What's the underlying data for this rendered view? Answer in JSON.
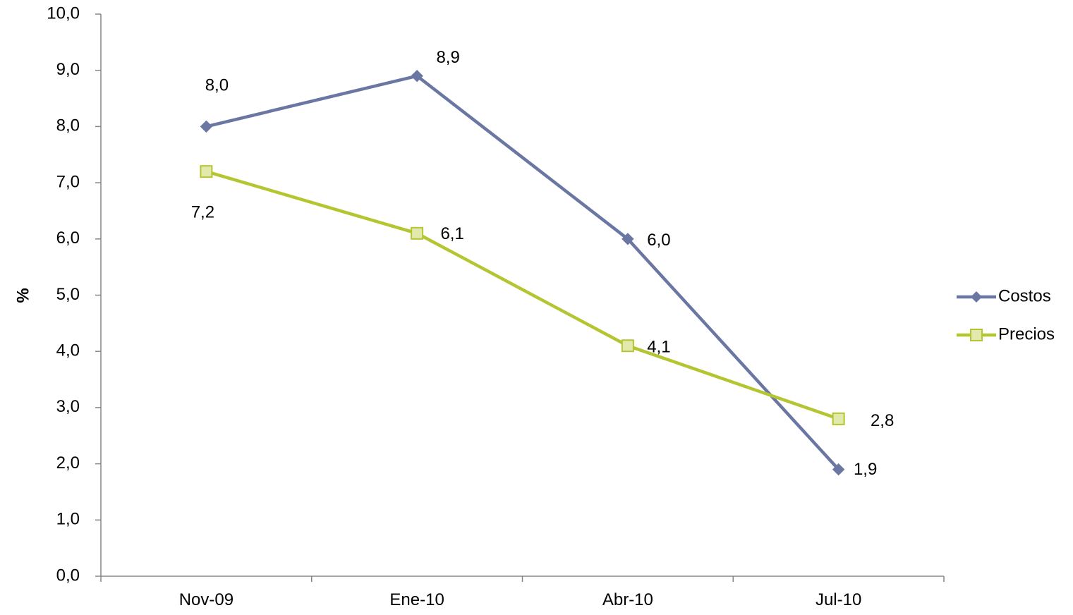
{
  "chart_data": {
    "type": "line",
    "categories": [
      "Nov-09",
      "Ene-10",
      "Abr-10",
      "Jul-10"
    ],
    "series": [
      {
        "name": "Costos",
        "values": [
          8.0,
          8.9,
          6.0,
          1.9
        ],
        "labels": [
          "8,0",
          "8,9",
          "6,0",
          "1,9"
        ],
        "color": "#6b77a3",
        "marker": "diamond"
      },
      {
        "name": "Precios",
        "values": [
          7.2,
          6.1,
          4.1,
          2.8
        ],
        "labels": [
          "7,2",
          "6,1",
          "4,1",
          "2,8"
        ],
        "color": "#b5c532",
        "marker_fill": "#e2e9ad",
        "marker": "square"
      }
    ],
    "ylabel": "%",
    "xlabel": "",
    "ylim": [
      0,
      10
    ],
    "yticks": [
      0,
      1,
      2,
      3,
      4,
      5,
      6,
      7,
      8,
      9,
      10
    ],
    "ytick_labels": [
      "0,0",
      "1,0",
      "2,0",
      "3,0",
      "4,0",
      "5,0",
      "6,0",
      "7,0",
      "8,0",
      "9,0",
      "10,0"
    ],
    "grid": false,
    "legend_position": "right"
  }
}
